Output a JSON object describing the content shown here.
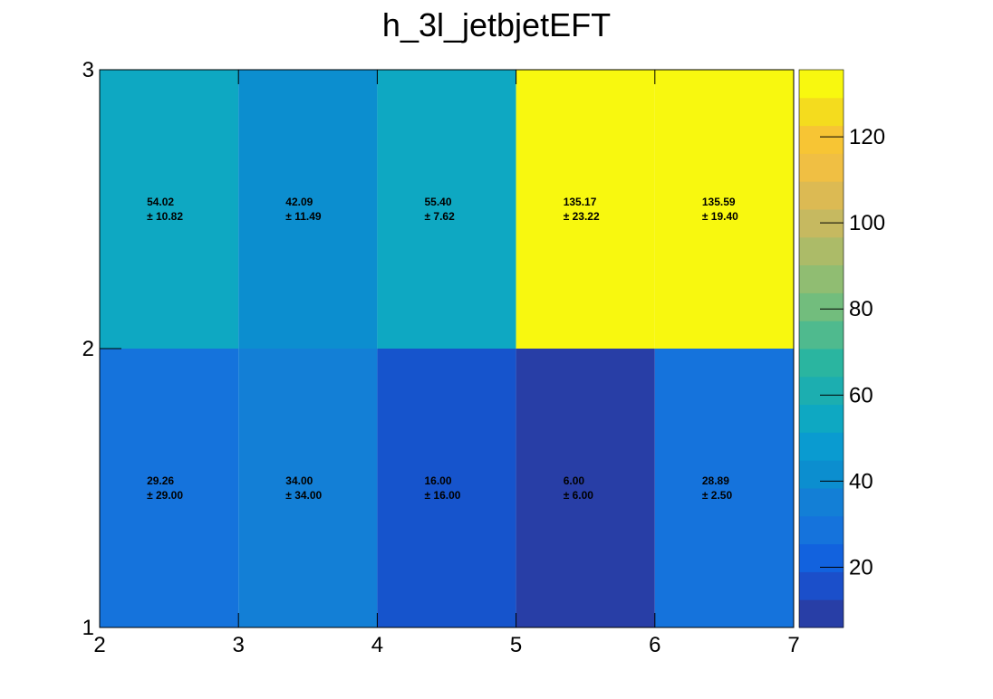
{
  "chart_data": {
    "type": "heatmap",
    "title": "h_3l_jetbjetEFT",
    "x_edges": [
      2,
      3,
      4,
      5,
      6,
      7
    ],
    "y_edges": [
      1,
      2,
      3
    ],
    "xlim": [
      2,
      7
    ],
    "ylim": [
      1,
      3
    ],
    "x_ticks": [
      "2",
      "3",
      "4",
      "5",
      "6",
      "7"
    ],
    "y_ticks": [
      "1",
      "2",
      "3"
    ],
    "cells": [
      {
        "x": 2,
        "y": 2,
        "value": 54.02,
        "value_label": "54.02",
        "error_label": "± 10.82",
        "color": "#0ea8c2"
      },
      {
        "x": 3,
        "y": 2,
        "value": 42.09,
        "value_label": "42.09",
        "error_label": "± 11.49",
        "color": "#0c8ecf"
      },
      {
        "x": 4,
        "y": 2,
        "value": 55.4,
        "value_label": "55.40",
        "error_label": "± 7.62",
        "color": "#0ea8c2"
      },
      {
        "x": 5,
        "y": 2,
        "value": 135.17,
        "value_label": "135.17",
        "error_label": "± 23.22",
        "color": "#f8f80f"
      },
      {
        "x": 6,
        "y": 2,
        "value": 135.59,
        "value_label": "135.59",
        "error_label": "± 19.40",
        "color": "#f8f80f"
      },
      {
        "x": 2,
        "y": 1,
        "value": 29.26,
        "value_label": "29.26",
        "error_label": "± 29.00",
        "color": "#1573dc"
      },
      {
        "x": 3,
        "y": 1,
        "value": 34.0,
        "value_label": "34.00",
        "error_label": "± 34.00",
        "color": "#137fd6"
      },
      {
        "x": 4,
        "y": 1,
        "value": 16.0,
        "value_label": "16.00",
        "error_label": "± 16.00",
        "color": "#1654cc"
      },
      {
        "x": 5,
        "y": 1,
        "value": 6.0,
        "value_label": "6.00",
        "error_label": "± 6.00",
        "color": "#283ea6"
      },
      {
        "x": 6,
        "y": 1,
        "value": 28.89,
        "value_label": "28.89",
        "error_label": "± 2.50",
        "color": "#1573dc"
      }
    ],
    "colorbar": {
      "min": 6,
      "max": 135.59,
      "ticks": [
        "20",
        "40",
        "60",
        "80",
        "100",
        "120"
      ],
      "tick_values": [
        20,
        40,
        60,
        80,
        100,
        120
      ],
      "colors": [
        "#283ea6",
        "#1b4fca",
        "#1262de",
        "#1573dc",
        "#137fd6",
        "#0c8ecf",
        "#0a9bd0",
        "#0ea8c2",
        "#1caeb0",
        "#2ab5a0",
        "#4fba8e",
        "#72bd7d",
        "#90bd72",
        "#acbb68",
        "#c6b960",
        "#dcba53",
        "#f0bf43",
        "#f7c534",
        "#f4dc1e",
        "#f8f80f"
      ]
    }
  }
}
